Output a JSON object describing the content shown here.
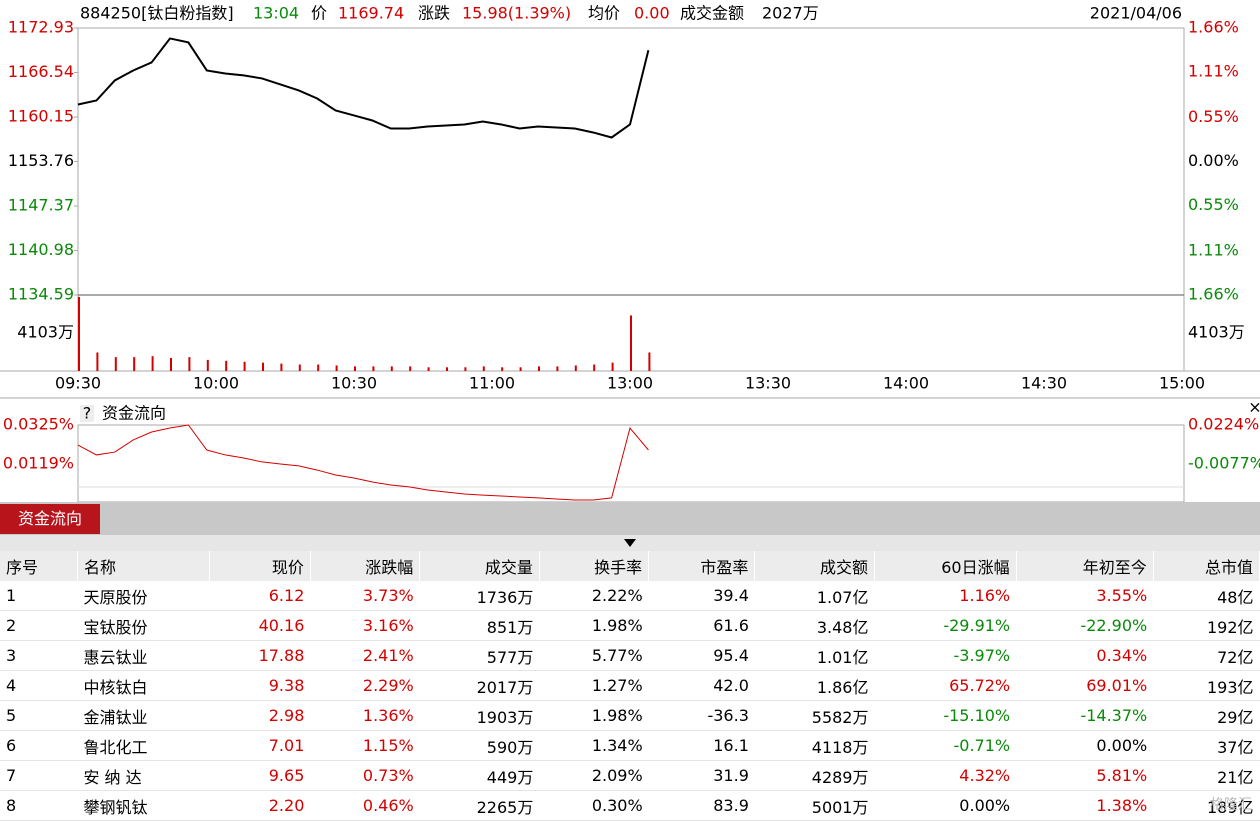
{
  "header": {
    "code": "884250[钛白粉指数]",
    "time": "13:04",
    "price_label": "价",
    "price": "1169.74",
    "change_label": "涨跌",
    "change": "15.98(1.39%)",
    "avg_label": "均价",
    "avg": "0.00",
    "amount_label": "成交金额",
    "amount": "2027万",
    "date": "2021/04/06"
  },
  "price_chart": {
    "type": "line",
    "color": "#000000",
    "values": [
      1161.95,
      1162.52,
      1165.4,
      1166.83,
      1167.98,
      1171.43,
      1170.86,
      1166.83,
      1166.4,
      1166.12,
      1165.69,
      1164.82,
      1163.96,
      1162.81,
      1161.09,
      1160.37,
      1159.65,
      1158.5,
      1158.5,
      1158.79,
      1158.93,
      1159.08,
      1159.51,
      1159.08,
      1158.5,
      1158.79,
      1158.65,
      1158.5,
      1157.93,
      1157.21,
      1159.08,
      1169.74
    ],
    "ylim": [
      1134.59,
      1172.93
    ],
    "yticks": [
      1172.93,
      1166.54,
      1160.15,
      1153.76,
      1147.37,
      1140.98,
      1134.59
    ],
    "y2lim": [
      -1.66,
      1.66
    ],
    "y2ticks": [
      {
        "value": 1.66,
        "label": "1.66%"
      },
      {
        "value": 1.11,
        "label": "1.11%"
      },
      {
        "value": 0.55,
        "label": "0.55%"
      },
      {
        "value": 0,
        "label": "0.00%"
      },
      {
        "value": -0.55,
        "label": "0.55%"
      },
      {
        "value": -1.11,
        "label": "1.11%"
      },
      {
        "value": -1.66,
        "label": "1.66%"
      }
    ],
    "xticks": [
      "09:30",
      "10:00",
      "10:30",
      "11:00",
      "13:00",
      "13:30",
      "14:00",
      "14:30",
      "15:00"
    ]
  },
  "volume_chart": {
    "type": "bar",
    "color": "#d40000",
    "values": [
      8000,
      2000,
      1500,
      1500,
      1600,
      1400,
      1500,
      1200,
      1100,
      1000,
      900,
      800,
      700,
      700,
      600,
      500,
      500,
      500,
      500,
      400,
      400,
      400,
      500,
      400,
      400,
      500,
      500,
      600,
      700,
      900,
      6000,
      2000
    ],
    "ylim": [
      0,
      8206
    ],
    "yticks": [
      {
        "value": 4103,
        "label": "4103万"
      }
    ]
  },
  "flow_chart": {
    "type": "line",
    "title": "资金流向",
    "help": "?",
    "close": "×",
    "color": "#d40000",
    "values": [
      0.0219,
      0.0167,
      0.0182,
      0.0246,
      0.0288,
      0.0309,
      0.0325,
      0.0193,
      0.0167,
      0.0151,
      0.013,
      0.0119,
      0.0109,
      0.0087,
      0.0061,
      0.0045,
      0.0024,
      0.0008,
      -0.0002,
      -0.0018,
      -0.0029,
      -0.0039,
      -0.0045,
      -0.005,
      -0.0055,
      -0.006,
      -0.0066,
      -0.0071,
      -0.0071,
      -0.006,
      0.0309,
      0.0193
    ],
    "ylim": [
      -0.0071,
      0.0325
    ],
    "yticks": [
      {
        "value": 0.0325,
        "label": "0.0325%"
      },
      {
        "value": 0.0119,
        "label": "0.0119%"
      }
    ],
    "y2ticks": [
      {
        "value": 0.0224,
        "label": "0.0224%"
      },
      {
        "value": -0.0077,
        "label": "-0.0077%"
      }
    ]
  },
  "tab": "资金流向",
  "table": {
    "columns": [
      "序号",
      "名称",
      "现价",
      "涨跌幅",
      "成交量",
      "换手率",
      "市盈率",
      "成交额",
      "60日涨幅",
      "年初至今",
      "总市值"
    ],
    "rows": [
      [
        "1",
        "天原股份",
        "6.12",
        "3.73%",
        "1736万",
        "2.22%",
        "39.4",
        "1.07亿",
        "1.16%",
        "3.55%",
        "48亿"
      ],
      [
        "2",
        "宝钛股份",
        "40.16",
        "3.16%",
        "851万",
        "1.98%",
        "61.6",
        "3.48亿",
        "-29.91%",
        "-22.90%",
        "192亿"
      ],
      [
        "3",
        "惠云钛业",
        "17.88",
        "2.41%",
        "577万",
        "5.77%",
        "95.4",
        "1.01亿",
        "-3.97%",
        "0.34%",
        "72亿"
      ],
      [
        "4",
        "中核钛白",
        "9.38",
        "2.29%",
        "2017万",
        "1.27%",
        "42.0",
        "1.86亿",
        "65.72%",
        "69.01%",
        "193亿"
      ],
      [
        "5",
        "金浦钛业",
        "2.98",
        "1.36%",
        "1903万",
        "1.98%",
        "-36.3",
        "5582万",
        "-15.10%",
        "-14.37%",
        "29亿"
      ],
      [
        "6",
        "鲁北化工",
        "7.01",
        "1.15%",
        "590万",
        "1.34%",
        "16.1",
        "4118万",
        "-0.71%",
        "0.00%",
        "37亿"
      ],
      [
        "7",
        "安 纳 达",
        "9.65",
        "0.73%",
        "449万",
        "2.09%",
        "31.9",
        "4289万",
        "4.32%",
        "5.81%",
        "21亿"
      ],
      [
        "8",
        "攀钢钒钛",
        "2.20",
        "0.46%",
        "2265万",
        "0.30%",
        "83.9",
        "5001万",
        "0.00%",
        "1.38%",
        "189亿"
      ]
    ]
  },
  "watermark": "格隆汇"
}
